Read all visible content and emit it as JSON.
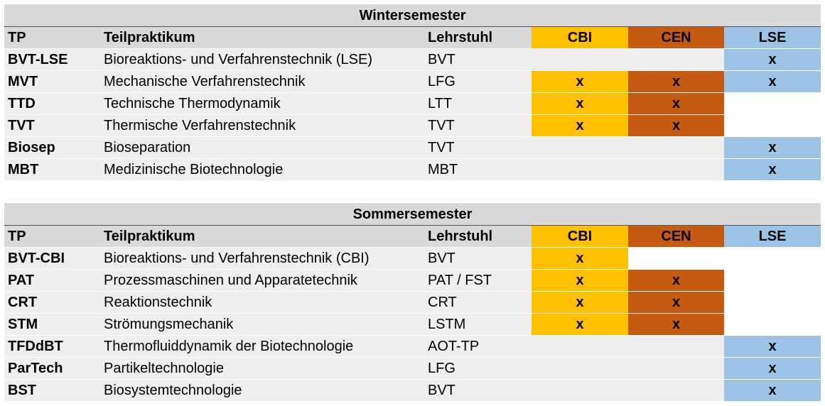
{
  "colors": {
    "cbi": "#ffc000",
    "cen": "#c55a11",
    "lse": "#9dc3e6",
    "header_gray": "#d9d9d9",
    "row_gray": "#efefef"
  },
  "headers": {
    "tp": "TP",
    "teil": "Teilpraktikum",
    "lehrstuhl": "Lehrstuhl",
    "cbi": "CBI",
    "cen": "CEN",
    "lse": "LSE"
  },
  "tables": [
    {
      "title": "Wintersemester",
      "rows": [
        {
          "tp": "BVT-LSE",
          "teil": "Bioreaktions- und Verfahrenstechnik (LSE)",
          "lehrstuhl": "BVT",
          "cbi": "",
          "cen": "",
          "lse": "x"
        },
        {
          "tp": "MVT",
          "teil": "Mechanische Verfahrenstechnik",
          "lehrstuhl": "LFG",
          "cbi": "x",
          "cen": "x",
          "lse": "x"
        },
        {
          "tp": "TTD",
          "teil": "Technische Thermodynamik",
          "lehrstuhl": "LTT",
          "cbi": "x",
          "cen": "x",
          "lse": ""
        },
        {
          "tp": "TVT",
          "teil": "Thermische Verfahrenstechnik",
          "lehrstuhl": "TVT",
          "cbi": "x",
          "cen": "x",
          "lse": ""
        },
        {
          "tp": "Biosep",
          "teil": "Bioseparation",
          "lehrstuhl": "TVT",
          "cbi": "",
          "cen": "",
          "lse": "x"
        },
        {
          "tp": "MBT",
          "teil": "Medizinische Biotechnologie",
          "lehrstuhl": "MBT",
          "cbi": "",
          "cen": "",
          "lse": "x"
        }
      ]
    },
    {
      "title": "Sommersemester",
      "rows": [
        {
          "tp": "BVT-CBI",
          "teil": "Bioreaktions- und Verfahrenstechnik (CBI)",
          "lehrstuhl": "BVT",
          "cbi": "x",
          "cen": "",
          "lse": ""
        },
        {
          "tp": "PAT",
          "teil": "Prozessmaschinen und Apparatetechnik",
          "lehrstuhl": "PAT / FST",
          "cbi": "x",
          "cen": "x",
          "lse": ""
        },
        {
          "tp": "CRT",
          "teil": "Reaktionstechnik",
          "lehrstuhl": "CRT",
          "cbi": "x",
          "cen": "x",
          "lse": ""
        },
        {
          "tp": "STM",
          "teil": "Strömungsmechanik",
          "lehrstuhl": "LSTM",
          "cbi": "x",
          "cen": "x",
          "lse": ""
        },
        {
          "tp": "TFDdBT",
          "teil": "Thermofluiddynamik der Biotechnologie",
          "lehrstuhl": "AOT-TP",
          "cbi": "",
          "cen": "",
          "lse": "x"
        },
        {
          "tp": "ParTech",
          "teil": "Partikeltechnologie",
          "lehrstuhl": "LFG",
          "cbi": "",
          "cen": "",
          "lse": "x"
        },
        {
          "tp": "BST",
          "teil": "Biosystemtechnologie",
          "lehrstuhl": "BVT",
          "cbi": "",
          "cen": "",
          "lse": "x"
        }
      ]
    }
  ]
}
